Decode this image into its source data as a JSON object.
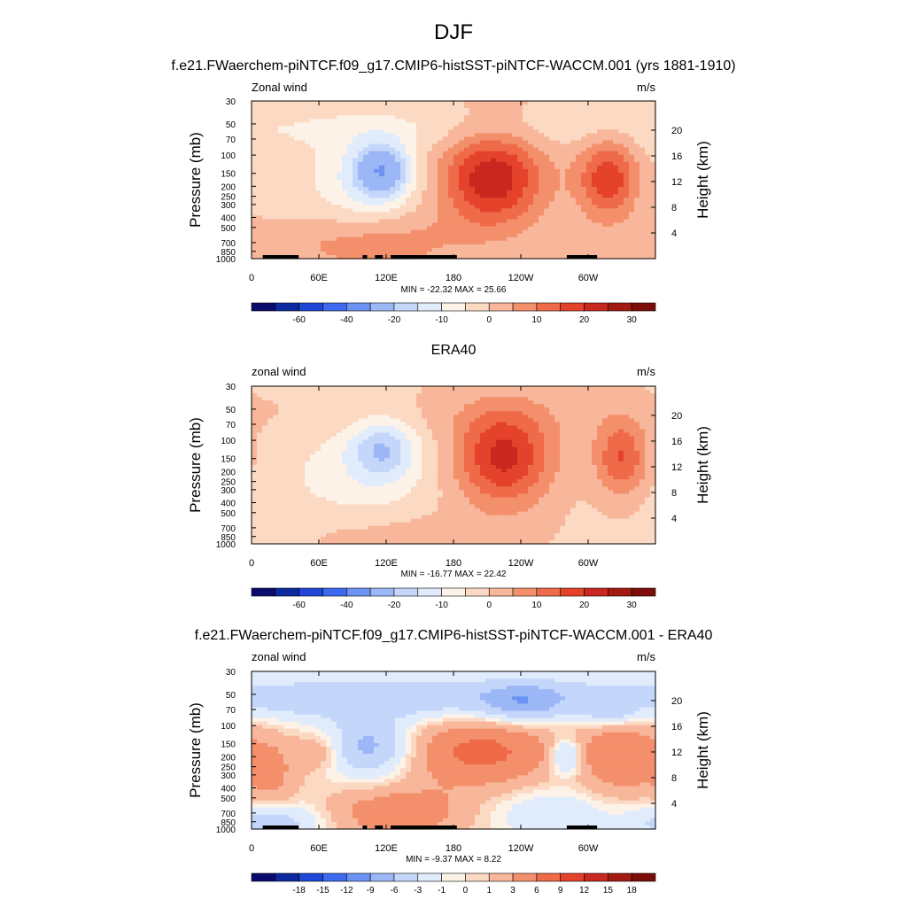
{
  "figure": {
    "title": "DJF",
    "colormap": [
      "#0b0b6e",
      "#0b2a9f",
      "#1f46d6",
      "#3d69ee",
      "#6c92f3",
      "#9bb7f6",
      "#c4d7fa",
      "#e0ebfc",
      "#fdf2e7",
      "#fbd9c2",
      "#f8b69a",
      "#f48f6c",
      "#ef6a48",
      "#e5422c",
      "#c8281f",
      "#a41912",
      "#7c0d08"
    ],
    "min_label": "MIN",
    "max_label": "MAX"
  },
  "chart_data": [
    {
      "type": "heatmap",
      "title": "f.e21.FWaerchem-piNTCF.f09_g17.CMIP6-histSST-piNTCF-WACCM.001 (yrs 1881-1910)",
      "left_label": "Zonal wind",
      "right_label": "m/s",
      "xlabel": "",
      "ylabel": "Pressure (mb)",
      "y2label": "Height (km)",
      "x_ticks": [
        "0",
        "60E",
        "120E",
        "180",
        "120W",
        "60W"
      ],
      "y_ticks": [
        "30",
        "50",
        "70",
        "100",
        "150",
        "200",
        "250",
        "300",
        "400",
        "500",
        "700",
        "850",
        "1000"
      ],
      "y2_ticks": [
        "20",
        "16",
        "12",
        "8",
        "4"
      ],
      "min": -22.32,
      "max": 25.66,
      "stats": "MIN = -22.32  MAX =  25.66",
      "colorbar_labels": [
        "-60",
        "-40",
        "-20",
        "-10",
        "0",
        "10",
        "20",
        "30"
      ],
      "colorbar_levels": [
        -70,
        -60,
        -50,
        -40,
        -30,
        -20,
        -15,
        -10,
        -5,
        0,
        5,
        10,
        15,
        20,
        25,
        30,
        35
      ],
      "blobs": [
        {
          "lon": 117,
          "p": 140,
          "value": -22,
          "sx": 17,
          "sy": 0.42
        },
        {
          "lon": 100,
          "p": 170,
          "value": -8,
          "sx": 28,
          "sy": 0.7
        },
        {
          "lon": 80,
          "p": 300,
          "value": -3,
          "sx": 90,
          "sy": 1.4
        },
        {
          "lon": 214,
          "p": 170,
          "value": 25,
          "sx": 32,
          "sy": 0.75
        },
        {
          "lon": 318,
          "p": 170,
          "value": 20,
          "sx": 19,
          "sy": 0.62
        },
        {
          "lon": 150,
          "p": 55,
          "value": -4,
          "sx": 360,
          "sy": 0.35
        },
        {
          "lon": 120,
          "p": 700,
          "value": 8,
          "sx": 50,
          "sy": 0.5
        },
        {
          "lon": 40,
          "p": 750,
          "value": 4,
          "sx": 60,
          "sy": 0.5
        }
      ],
      "topography": [
        [
          10,
          30
        ],
        [
          29,
          37
        ],
        [
          33,
          42
        ],
        [
          99,
          103
        ],
        [
          110,
          117
        ],
        [
          124,
          183
        ],
        [
          281,
          308
        ]
      ]
    },
    {
      "type": "heatmap",
      "title": "ERA40",
      "left_label": "zonal wind",
      "right_label": "m/s",
      "xlabel": "",
      "ylabel": "Pressure (mb)",
      "y2label": "Height (km)",
      "x_ticks": [
        "0",
        "60E",
        "120E",
        "180",
        "120W",
        "60W"
      ],
      "y_ticks": [
        "30",
        "50",
        "70",
        "100",
        "150",
        "200",
        "250",
        "300",
        "400",
        "500",
        "700",
        "850",
        "1000"
      ],
      "y2_ticks": [
        "20",
        "16",
        "12",
        "8",
        "4"
      ],
      "min": -16.77,
      "max": 22.42,
      "stats": "MIN = -16.77  MAX =  22.42",
      "colorbar_labels": [
        "-60",
        "-40",
        "-20",
        "-10",
        "0",
        "10",
        "20",
        "30"
      ],
      "colorbar_levels": [
        -70,
        -60,
        -50,
        -40,
        -30,
        -20,
        -15,
        -10,
        -5,
        0,
        5,
        10,
        15,
        20,
        25,
        30,
        35
      ],
      "blobs": [
        {
          "lon": 117,
          "p": 120,
          "value": -15,
          "sx": 20,
          "sy": 0.45
        },
        {
          "lon": 105,
          "p": 200,
          "value": -6,
          "sx": 40,
          "sy": 0.9
        },
        {
          "lon": 40,
          "p": 250,
          "value": -3,
          "sx": 80,
          "sy": 1.3
        },
        {
          "lon": 225,
          "p": 145,
          "value": 22,
          "sx": 30,
          "sy": 0.75
        },
        {
          "lon": 330,
          "p": 150,
          "value": 17,
          "sx": 17,
          "sy": 0.6
        },
        {
          "lon": 170,
          "p": 60,
          "value": 2,
          "sx": 300,
          "sy": 0.4
        },
        {
          "lon": 110,
          "p": 750,
          "value": 4,
          "sx": 60,
          "sy": 0.4
        }
      ],
      "topography": []
    },
    {
      "type": "heatmap",
      "title": "f.e21.FWaerchem-piNTCF.f09_g17.CMIP6-histSST-piNTCF-WACCM.001 - ERA40",
      "left_label": "zonal wind",
      "right_label": "m/s",
      "xlabel": "",
      "ylabel": "Pressure (mb)",
      "y2label": "Height (km)",
      "x_ticks": [
        "0",
        "60E",
        "120E",
        "180",
        "120W",
        "60W"
      ],
      "y_ticks": [
        "30",
        "50",
        "70",
        "100",
        "150",
        "200",
        "250",
        "300",
        "400",
        "500",
        "700",
        "850",
        "1000"
      ],
      "y2_ticks": [
        "20",
        "16",
        "12",
        "8",
        "4"
      ],
      "min": -9.37,
      "max": 8.22,
      "stats": "MIN =  -9.37  MAX =   8.22",
      "colorbar_labels": [
        "-18",
        "-15",
        "-12",
        "-9",
        "-6",
        "-3",
        "-1",
        "0",
        "1",
        "3",
        "6",
        "9",
        "12",
        "15",
        "18"
      ],
      "colorbar_levels": [
        -21,
        -18,
        -15,
        -12,
        -9,
        -6,
        -3,
        -1,
        0,
        1,
        3,
        6,
        9,
        12,
        15,
        18,
        21
      ],
      "blobs": [
        {
          "lon": 180,
          "p": 55,
          "value": -5,
          "sx": 400,
          "sy": 0.35
        },
        {
          "lon": 240,
          "p": 60,
          "value": -5,
          "sx": 25,
          "sy": 0.3
        },
        {
          "lon": 320,
          "p": 75,
          "value": -4,
          "sx": 15,
          "sy": 0.2
        },
        {
          "lon": 105,
          "p": 160,
          "value": -7,
          "sx": 25,
          "sy": 0.45
        },
        {
          "lon": 205,
          "p": 180,
          "value": 7,
          "sx": 45,
          "sy": 0.55
        },
        {
          "lon": 280,
          "p": 200,
          "value": -6,
          "sx": 10,
          "sy": 0.3
        },
        {
          "lon": 330,
          "p": 200,
          "value": 5,
          "sx": 30,
          "sy": 0.7
        },
        {
          "lon": 130,
          "p": 700,
          "value": 5,
          "sx": 45,
          "sy": 0.4
        },
        {
          "lon": 20,
          "p": 300,
          "value": 3,
          "sx": 15,
          "sy": 0.6
        },
        {
          "lon": 60,
          "p": 180,
          "value": 3,
          "sx": 15,
          "sy": 0.3
        },
        {
          "lon": 20,
          "p": 850,
          "value": -5,
          "sx": 30,
          "sy": 0.3
        },
        {
          "lon": 270,
          "p": 700,
          "value": -3,
          "sx": 40,
          "sy": 0.4
        }
      ],
      "topography": [
        [
          10,
          30
        ],
        [
          29,
          37
        ],
        [
          33,
          42
        ],
        [
          99,
          103
        ],
        [
          110,
          117
        ],
        [
          124,
          183
        ],
        [
          281,
          308
        ]
      ]
    }
  ]
}
